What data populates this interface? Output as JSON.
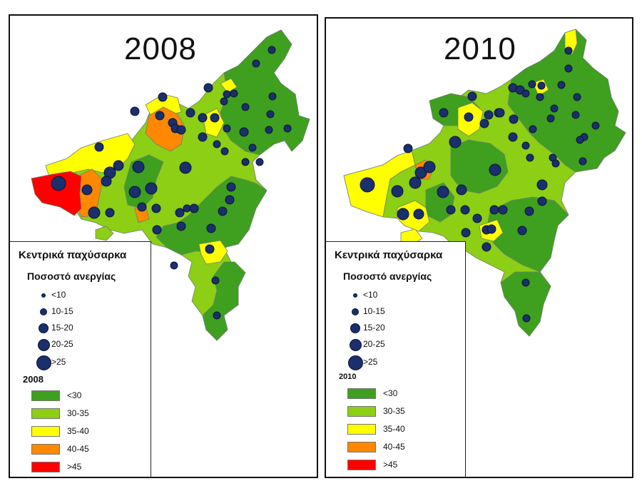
{
  "legend_title": "Κεντρικά παχύσαρκα",
  "legend_subtitle": "Ποσοστό ανεργίας",
  "dot_classes": [
    "<10",
    "10-15",
    "15-20",
    "20-25",
    ">25"
  ],
  "fill_classes": [
    "<30",
    "30-35",
    "35-40",
    "40-45",
    ">45"
  ],
  "fill_colors": [
    "#3ea01e",
    "#8ccf14",
    "#ffff00",
    "#ff8800",
    "#ff0000"
  ],
  "dot_color": "#1a2f6b",
  "maps": [
    {
      "year": "2008",
      "legend_year": "2008"
    },
    {
      "year": "2010",
      "legend_year": "2010"
    }
  ]
}
